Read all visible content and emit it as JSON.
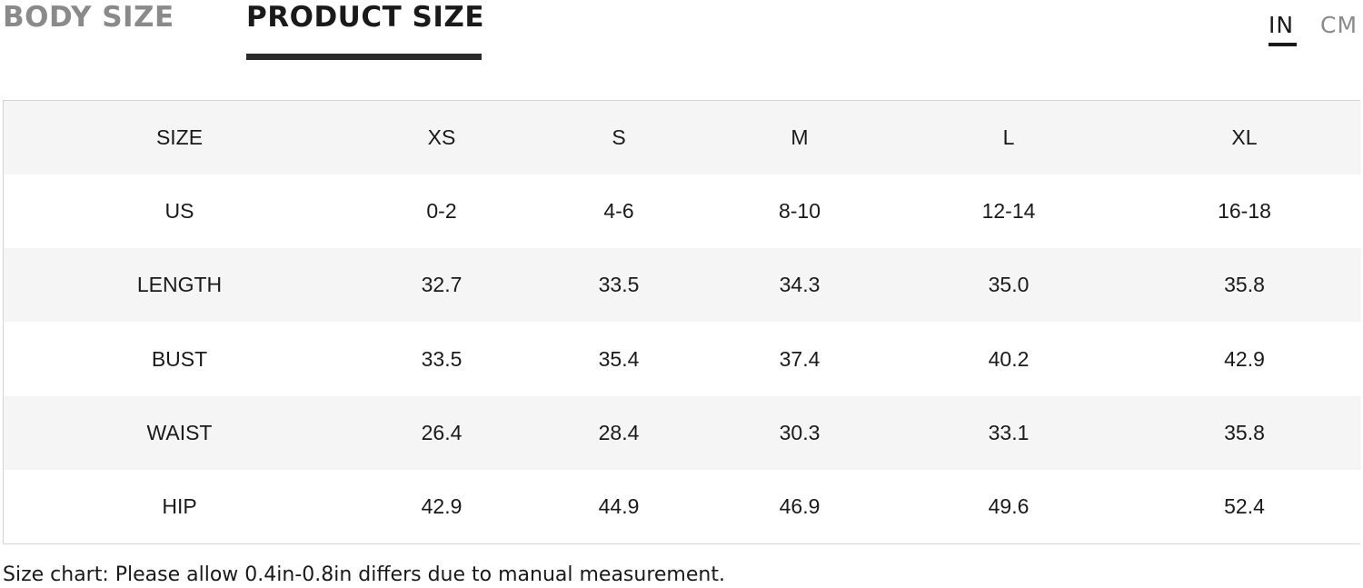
{
  "tabs": [
    {
      "label": "BODY SIZE",
      "active": false
    },
    {
      "label": "PRODUCT SIZE",
      "active": true
    }
  ],
  "units": [
    {
      "label": "IN",
      "active": true
    },
    {
      "label": "CM",
      "active": false
    }
  ],
  "table": {
    "header": [
      "SIZE",
      "XS",
      "S",
      "M",
      "L",
      "XL"
    ],
    "rows": [
      [
        "US",
        "0-2",
        "4-6",
        "8-10",
        "12-14",
        "16-18"
      ],
      [
        "LENGTH",
        "32.7",
        "33.5",
        "34.3",
        "35.0",
        "35.8"
      ],
      [
        "BUST",
        "33.5",
        "35.4",
        "37.4",
        "40.2",
        "42.9"
      ],
      [
        "WAIST",
        "26.4",
        "28.4",
        "30.3",
        "33.1",
        "35.8"
      ],
      [
        "HIP",
        "42.9",
        "44.9",
        "46.9",
        "49.6",
        "52.4"
      ]
    ]
  },
  "note": "Size chart: Please allow 0.4in-0.8in differs due to manual measurement.",
  "colors": {
    "active": "#1a1a1a",
    "inactive": "#8a8a8a",
    "stripe": "#f5f5f5",
    "border": "#d4d4d4"
  }
}
